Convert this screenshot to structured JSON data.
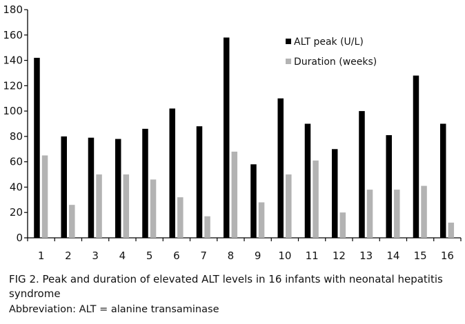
{
  "chart_data": {
    "type": "bar",
    "categories": [
      "1",
      "2",
      "3",
      "4",
      "5",
      "6",
      "7",
      "8",
      "9",
      "10",
      "11",
      "12",
      "13",
      "14",
      "15",
      "16"
    ],
    "series": [
      {
        "name": "ALT peak (U/L)",
        "color": "#000000",
        "values": [
          142,
          80,
          79,
          78,
          86,
          102,
          88,
          158,
          58,
          110,
          90,
          70,
          100,
          81,
          128,
          90
        ]
      },
      {
        "name": "Duration (weeks)",
        "color": "#b3b3b3",
        "values": [
          65,
          26,
          50,
          50,
          46,
          32,
          17,
          68,
          28,
          50,
          61,
          20,
          38,
          38,
          41,
          12
        ]
      }
    ],
    "ylim": [
      0,
      180
    ],
    "yticks": [
      0,
      20,
      40,
      60,
      80,
      100,
      120,
      140,
      160,
      180
    ],
    "title": "",
    "xlabel": "",
    "ylabel": "",
    "legend_position": "top-right",
    "grid": false
  },
  "caption": {
    "text": "FIG 2. Peak and duration of elevated ALT levels in 16 infants with neonatal hepatitis syndrome",
    "abbreviation": "Abbreviation: ALT = alanine transaminase"
  }
}
